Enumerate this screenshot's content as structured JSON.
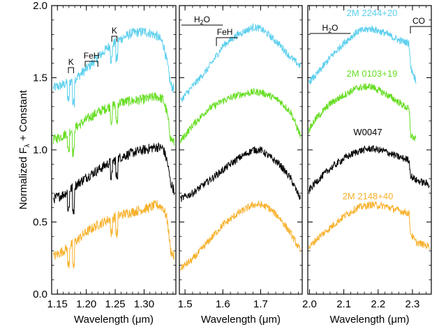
{
  "chart_data": {
    "type": "line",
    "title": "",
    "ylabel_main": "Normalized F",
    "ylabel_sub": "λ",
    "ylabel_tail": " + Constant",
    "ylim": [
      0.0,
      2.0
    ],
    "yticks": [
      "0.0",
      "0.5",
      "1.0",
      "1.5",
      "2.0"
    ],
    "panels": [
      {
        "xlabel": "Wavelength (μm)",
        "xlim": [
          1.14,
          1.355
        ],
        "xticks": [
          "1.15",
          "1.20",
          "1.25",
          "1.30"
        ],
        "xtick_values": [
          1.15,
          1.2,
          1.25,
          1.3
        ],
        "features": [
          {
            "label": "K",
            "x": [
              1.169,
              1.178
            ]
          },
          {
            "label": "FeH",
            "x": [
              1.198,
              1.22
            ]
          },
          {
            "label": "K",
            "x": [
              1.244,
              1.253
            ]
          }
        ]
      },
      {
        "xlabel": "Wavelength (μm)",
        "xlim": [
          1.485,
          1.81
        ],
        "xticks": [
          "1.5",
          "1.6",
          "1.7"
        ],
        "xtick_values": [
          1.5,
          1.6,
          1.7
        ],
        "features": [
          {
            "label": "H2O",
            "x": [
              1.49,
              1.6
            ]
          },
          {
            "label": "FeH",
            "x": [
              1.583,
              1.64
            ]
          }
        ]
      },
      {
        "xlabel": "Wavelength (μm)",
        "xlim": [
          1.995,
          2.355
        ],
        "xticks": [
          "2.0",
          "2.1",
          "2.2",
          "2.3"
        ],
        "xtick_values": [
          2.0,
          2.1,
          2.2,
          2.3
        ],
        "features": [
          {
            "label": "H2O",
            "x": [
              2.0,
              2.12
            ]
          },
          {
            "label": "CO",
            "x": [
              2.294,
              2.355
            ]
          }
        ]
      }
    ],
    "series": [
      {
        "name": "2M 2244+20",
        "color": "#5ccfee",
        "panels": [
          {
            "x": [
              1.143,
              1.16,
              1.18,
              1.2,
              1.22,
              1.24,
              1.26,
              1.28,
              1.3,
              1.31,
              1.322,
              1.333,
              1.34,
              1.346,
              1.352
            ],
            "y": [
              1.43,
              1.45,
              1.49,
              1.56,
              1.64,
              1.72,
              1.77,
              1.81,
              1.82,
              1.81,
              1.79,
              1.74,
              1.6,
              1.45,
              1.42
            ]
          },
          {
            "x": [
              1.488,
              1.52,
              1.56,
              1.6,
              1.64,
              1.68,
              1.7,
              1.72,
              1.75,
              1.78,
              1.805
            ],
            "y": [
              1.34,
              1.44,
              1.56,
              1.72,
              1.8,
              1.85,
              1.84,
              1.8,
              1.73,
              1.64,
              1.58
            ]
          },
          {
            "x": [
              1.998,
              2.02,
              2.06,
              2.1,
              2.14,
              2.18,
              2.22,
              2.26,
              2.29,
              2.295,
              2.31
            ],
            "y": [
              1.47,
              1.52,
              1.64,
              1.74,
              1.82,
              1.84,
              1.81,
              1.76,
              1.74,
              1.57,
              1.48
            ]
          }
        ]
      },
      {
        "name": "2M 0103+19",
        "color": "#66dd22",
        "panels": [
          {
            "x": [
              1.143,
              1.16,
              1.18,
              1.2,
              1.22,
              1.24,
              1.26,
              1.28,
              1.3,
              1.31,
              1.322,
              1.333,
              1.34,
              1.346,
              1.352
            ],
            "y": [
              1.07,
              1.1,
              1.15,
              1.21,
              1.26,
              1.3,
              1.33,
              1.34,
              1.35,
              1.36,
              1.37,
              1.35,
              1.25,
              1.08,
              1.05
            ]
          },
          {
            "x": [
              1.488,
              1.52,
              1.56,
              1.6,
              1.64,
              1.68,
              1.7,
              1.72,
              1.75,
              1.78,
              1.805
            ],
            "y": [
              1.06,
              1.17,
              1.28,
              1.34,
              1.38,
              1.4,
              1.4,
              1.38,
              1.34,
              1.26,
              1.1
            ]
          },
          {
            "x": [
              1.998,
              2.02,
              2.06,
              2.1,
              2.14,
              2.18,
              2.22,
              2.26,
              2.29,
              2.295,
              2.31
            ],
            "y": [
              1.14,
              1.22,
              1.32,
              1.38,
              1.43,
              1.44,
              1.39,
              1.33,
              1.28,
              1.1,
              1.07
            ]
          }
        ]
      },
      {
        "name": "W0047",
        "color": "#000000",
        "panels": [
          {
            "x": [
              1.143,
              1.16,
              1.18,
              1.2,
              1.22,
              1.24,
              1.26,
              1.28,
              1.3,
              1.31,
              1.322,
              1.333,
              1.34,
              1.346,
              1.352
            ],
            "y": [
              0.66,
              0.69,
              0.75,
              0.81,
              0.86,
              0.91,
              0.95,
              0.98,
              1.0,
              1.01,
              1.02,
              1.01,
              0.92,
              0.77,
              0.72
            ]
          },
          {
            "x": [
              1.488,
              1.52,
              1.56,
              1.6,
              1.64,
              1.68,
              1.7,
              1.72,
              1.75,
              1.78,
              1.805
            ],
            "y": [
              0.66,
              0.7,
              0.78,
              0.86,
              0.94,
              1.0,
              1.0,
              0.96,
              0.9,
              0.8,
              0.66
            ]
          },
          {
            "x": [
              1.998,
              2.02,
              2.06,
              2.1,
              2.14,
              2.18,
              2.22,
              2.26,
              2.29,
              2.295,
              2.31,
              2.35
            ],
            "y": [
              0.72,
              0.78,
              0.87,
              0.94,
              0.99,
              1.01,
              0.99,
              0.95,
              0.93,
              0.82,
              0.79,
              0.76
            ]
          }
        ]
      },
      {
        "name": "2M 2148+40",
        "color": "#f7b12c",
        "panels": [
          {
            "x": [
              1.143,
              1.16,
              1.18,
              1.2,
              1.22,
              1.24,
              1.26,
              1.28,
              1.3,
              1.31,
              1.322,
              1.333,
              1.34,
              1.346,
              1.352
            ],
            "y": [
              0.26,
              0.3,
              0.36,
              0.43,
              0.48,
              0.52,
              0.55,
              0.57,
              0.59,
              0.6,
              0.62,
              0.6,
              0.52,
              0.3,
              0.26
            ]
          },
          {
            "x": [
              1.488,
              1.52,
              1.56,
              1.6,
              1.64,
              1.68,
              1.7,
              1.72,
              1.75,
              1.78,
              1.805
            ],
            "y": [
              0.18,
              0.24,
              0.36,
              0.48,
              0.56,
              0.62,
              0.62,
              0.6,
              0.53,
              0.42,
              0.3
            ]
          },
          {
            "x": [
              1.998,
              2.02,
              2.06,
              2.1,
              2.14,
              2.18,
              2.22,
              2.26,
              2.29,
              2.295,
              2.31,
              2.35
            ],
            "y": [
              0.32,
              0.38,
              0.46,
              0.54,
              0.6,
              0.62,
              0.61,
              0.58,
              0.56,
              0.42,
              0.36,
              0.33
            ]
          }
        ]
      }
    ],
    "absorption_dips": [
      {
        "panel": 0,
        "x": 1.169,
        "depth": 0.12
      },
      {
        "panel": 0,
        "x": 1.1775,
        "depth": 0.16
      },
      {
        "panel": 0,
        "x": 1.2435,
        "depth": 0.1
      },
      {
        "panel": 0,
        "x": 1.2525,
        "depth": 0.12
      }
    ]
  }
}
